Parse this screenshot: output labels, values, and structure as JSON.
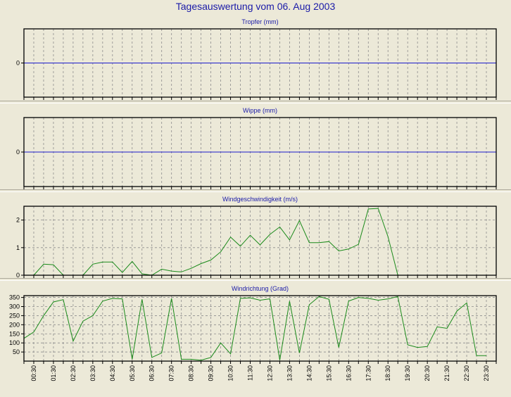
{
  "title": "Tagesauswertung vom 06. Aug 2003",
  "chart_data": [
    {
      "type": "line",
      "title": "Tropfer (mm)",
      "ylim": [
        -1,
        1
      ],
      "yticks": [
        0
      ],
      "series": [
        {
          "values": [
            0,
            0
          ]
        }
      ],
      "x_full": true,
      "grid": true,
      "colors": {
        "line": "#1a1acc"
      }
    },
    {
      "type": "line",
      "title": "Wippe (mm)",
      "ylim": [
        -1,
        1
      ],
      "yticks": [
        0
      ],
      "series": [
        {
          "values": [
            0,
            0
          ]
        }
      ],
      "x_full": true,
      "grid": true,
      "colors": {
        "line": "#1a1acc"
      }
    },
    {
      "type": "line",
      "title": "Windgeschwindigkeit (m/s)",
      "ylim": [
        0,
        2.5
      ],
      "yticks": [
        0,
        1,
        2
      ],
      "series": [
        {
          "values": [
            0,
            0,
            0.4,
            0.38,
            0,
            0,
            0,
            0.4,
            0.48,
            0.48,
            0.1,
            0.5,
            0.05,
            0,
            0.22,
            0.15,
            0.12,
            0.25,
            0.42,
            0.55,
            0.85,
            1.38,
            1.05,
            1.45,
            1.1,
            1.48,
            1.75,
            1.28,
            1.98,
            1.18,
            1.18,
            1.22,
            0.88,
            0.95,
            1.12,
            2.4,
            2.42,
            1.4,
            0,
            0,
            0,
            0,
            0,
            0,
            0,
            0,
            0
          ]
        }
      ],
      "grid": true,
      "colors": {
        "line": "#1a8a1a"
      }
    },
    {
      "type": "line",
      "title": "Windrichtung (Grad)",
      "ylim": [
        0,
        360
      ],
      "yticks": [
        50,
        100,
        150,
        200,
        250,
        300,
        350
      ],
      "x_label_every": 2,
      "x": [
        "00:00",
        "00:30",
        "01:00",
        "01:30",
        "02:00",
        "02:30",
        "03:00",
        "03:30",
        "04:00",
        "04:30",
        "05:00",
        "05:30",
        "06:00",
        "06:30",
        "07:00",
        "07:30",
        "08:00",
        "08:30",
        "09:00",
        "09:30",
        "10:00",
        "10:30",
        "11:00",
        "11:30",
        "12:00",
        "12:30",
        "13:00",
        "13:30",
        "14:00",
        "14:30",
        "15:00",
        "15:30",
        "16:00",
        "16:30",
        "17:00",
        "17:30",
        "18:00",
        "18:30",
        "19:00",
        "19:30",
        "20:00",
        "20:30",
        "21:00",
        "21:30",
        "22:00",
        "22:30",
        "23:00",
        "23:30"
      ],
      "series": [
        {
          "values": [
            125,
            160,
            250,
            325,
            338,
            110,
            220,
            250,
            330,
            345,
            342,
            10,
            340,
            20,
            45,
            345,
            10,
            10,
            5,
            20,
            100,
            40,
            345,
            348,
            335,
            342,
            5,
            330,
            45,
            310,
            355,
            340,
            75,
            330,
            350,
            345,
            335,
            342,
            355,
            90,
            75,
            80,
            188,
            180,
            275,
            320,
            30,
            30
          ]
        }
      ],
      "grid": true,
      "colors": {
        "line": "#1a8a1a"
      }
    }
  ]
}
